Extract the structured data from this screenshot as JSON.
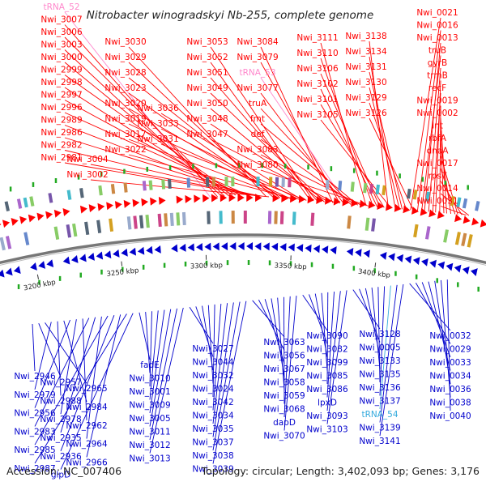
{
  "header": {
    "title": "Nitrobacter winogradskyi Nb-255, complete genome"
  },
  "footer": {
    "accession": "Accession: NC_007406",
    "summary": "Topology: circular; Length: 3,402,093 bp; Genes: 3,176"
  },
  "colors": {
    "forward_strand": "#ff0000",
    "reverse_strand": "#0000cc",
    "trna": "#ff88cc",
    "trna_reverse": "#33aadd",
    "backbone": "#777777",
    "marker": "#22aa22"
  },
  "ticks": [
    "3200 kbp",
    "3250 kbp",
    "3300 kbp",
    "3350 kbp",
    "3400 kbp"
  ],
  "top_labels": [
    "tRNA_52",
    "Nwi_3007",
    "Nwi_3006",
    "Nwi_3003",
    "Nwi_3000",
    "Nwi_2999",
    "Nwi_2998",
    "Nwi_2997",
    "Nwi_2996",
    "Nwi_2989",
    "Nwi_2986",
    "Nwi_2982",
    "Nwi_2981",
    "Nwi_3004",
    "Nwi_3002",
    "Nwi_3030",
    "Nwi_3029",
    "Nwi_3028",
    "Nwi_3023",
    "Nwi_3020",
    "Nwi_3019",
    "Nwi_3017",
    "Nwi_3022",
    "Nwi_3036",
    "Nwi_3033",
    "Nwi_3031",
    "Nwi_3053",
    "Nwi_3052",
    "Nwi_3051",
    "Nwi_3049",
    "Nwi_3050",
    "Nwi_3048",
    "Nwi_3047",
    "Nwi_3084",
    "Nwi_3079",
    "tRNA_53",
    "Nwi_3077",
    "truA",
    "fmt",
    "def",
    "Nwi_3083",
    "Nwi_3080",
    "Nwi_3111",
    "Nwi_3110",
    "Nwi_3106",
    "Nwi_3102",
    "Nwi_3101",
    "Nwi_3105",
    "Nwi_3138",
    "Nwi_3134",
    "Nwi_3131",
    "Nwi_3130",
    "Nwi_3129",
    "Nwi_3126",
    "Nwi_0021",
    "Nwi_0016",
    "Nwi_0013",
    "truB",
    "gyrB",
    "trmB",
    "recF",
    "Nwi_0019",
    "Nwi_0002",
    "Int",
    "rbfA",
    "dnaA",
    "Nwi_0017",
    "rpsT",
    "Nwi_0014",
    "Nwi_0031"
  ],
  "bottom_labels": [
    "Nwi_2946",
    "Nwi_2957",
    "Nwi_2965",
    "Nwi_2979",
    "Nwi_2988",
    "Nwi_2984",
    "Nwi_2956",
    "Nwi_2978",
    "Nwi_2962",
    "Nwi_2983",
    "Nwi_2935",
    "Nwi_2964",
    "Nwi_2985",
    "Nwi_2936",
    "Nwi_2966",
    "Nwi_2987",
    "glpD",
    "fadE",
    "Nwi_3010",
    "Nwi_3001",
    "Nwi_3009",
    "Nwi_3005",
    "Nwi_3011",
    "Nwi_3012",
    "Nwi_3013",
    "Nwi_3027",
    "Nwi_3044",
    "Nwi_3032",
    "Nwi_3024",
    "Nwi_3042",
    "Nwi_3034",
    "Nwi_3035",
    "Nwi_3037",
    "Nwi_3038",
    "Nwi_3039",
    "Nwi_3063",
    "Nwi_3056",
    "Nwi_3067",
    "Nwi_3058",
    "Nwi_3059",
    "Nwi_3068",
    "dapD",
    "Nwi_3070",
    "Nwi_3090",
    "Nwi_3082",
    "Nwi_3099",
    "Nwi_3085",
    "Nwi_3086",
    "lpxD",
    "Nwi_3093",
    "Nwi_3103",
    "Nwi_3128",
    "Nwi_0005",
    "Nwi_3133",
    "Nwi_3135",
    "Nwi_3136",
    "Nwi_3137",
    "tRNA_54",
    "Nwi_3139",
    "Nwi_3141",
    "Nwi_0032",
    "Nwi_0029",
    "Nwi_0033",
    "Nwi_0034",
    "Nwi_0036",
    "Nwi_0038",
    "Nwi_0040"
  ]
}
